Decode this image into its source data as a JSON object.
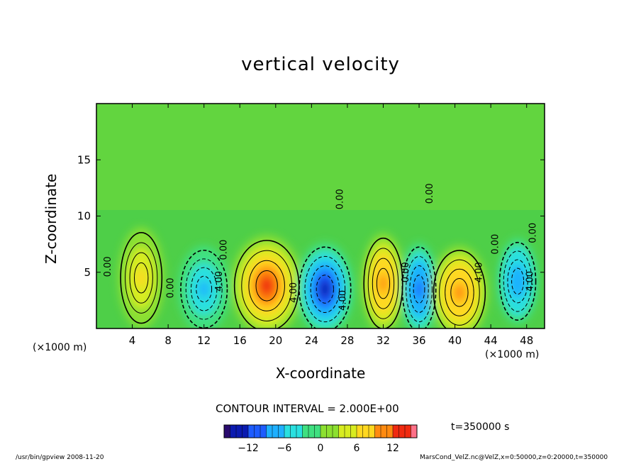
{
  "chart_data": {
    "type": "heatmap",
    "title": "vertical velocity",
    "xlabel": "X-coordinate",
    "ylabel": "Z-coordinate",
    "x_unit_label": "(×1000 m)",
    "x_ticks": [
      4,
      8,
      12,
      16,
      20,
      24,
      28,
      32,
      36,
      40,
      44,
      48
    ],
    "y_ticks": [
      5,
      10,
      15
    ],
    "xlim": [
      0,
      50
    ],
    "ylim": [
      0,
      20
    ],
    "contour_interval_text": "CONTOUR INTERVAL = 2.000E+00",
    "contour_labels": [
      {
        "text": "0.00",
        "x": 1.6,
        "y": 5.5
      },
      {
        "text": "0.00",
        "x": 8.6,
        "y": 3.6
      },
      {
        "text": "4.00",
        "x": 14.0,
        "y": 4.2
      },
      {
        "text": "0.00",
        "x": 14.5,
        "y": 7.0
      },
      {
        "text": "4.00",
        "x": 22.3,
        "y": 3.2
      },
      {
        "text": "0.00",
        "x": 27.5,
        "y": 11.5
      },
      {
        "text": "4.00",
        "x": 27.8,
        "y": 2.5
      },
      {
        "text": "0.00",
        "x": 34.8,
        "y": 5.0
      },
      {
        "text": "0.00",
        "x": 37.5,
        "y": 12.0
      },
      {
        "text": "4.00",
        "x": 43.0,
        "y": 5.0
      },
      {
        "text": "0.00",
        "x": 44.8,
        "y": 7.5
      },
      {
        "text": "4.00",
        "x": 48.7,
        "y": 4.2
      },
      {
        "text": "0.00",
        "x": 49.0,
        "y": 8.5
      }
    ],
    "cells": [
      {
        "x": 5,
        "z": 4.5,
        "value": 6,
        "sx": 1.6,
        "sz": 2.8
      },
      {
        "x": 12,
        "z": 3.5,
        "value": -6,
        "sx": 1.8,
        "sz": 2.4
      },
      {
        "x": 19,
        "z": 3.8,
        "value": 12,
        "sx": 2.5,
        "sz": 2.8
      },
      {
        "x": 25.5,
        "z": 3.5,
        "value": -12,
        "sx": 2.0,
        "sz": 2.6
      },
      {
        "x": 32,
        "z": 4.0,
        "value": 10,
        "sx": 1.5,
        "sz": 2.8
      },
      {
        "x": 36,
        "z": 3.5,
        "value": -10,
        "sx": 1.3,
        "sz": 2.6
      },
      {
        "x": 40.5,
        "z": 3.2,
        "value": 10,
        "sx": 2.0,
        "sz": 2.6
      },
      {
        "x": 47,
        "z": 4.2,
        "value": -8,
        "sx": 1.4,
        "sz": 2.4
      }
    ],
    "colorbar": {
      "ticks": [
        -12,
        -6,
        0,
        6,
        12
      ],
      "range": [
        -16,
        16
      ],
      "stops": [
        "#2a0a6e",
        "#0a1ab0",
        "#1e5cff",
        "#1fb0ff",
        "#2ae0e0",
        "#3fe080",
        "#8ce030",
        "#d8ec20",
        "#ffd820",
        "#ff8a10",
        "#f02a10",
        "#ff7088"
      ]
    },
    "time_label": "t=350000 s"
  },
  "footer": {
    "left": "/usr/bin/gpview   2008-11-20",
    "right": "MarsCond_VelZ.nc@VelZ,x=0:50000,z=0:20000,t=350000"
  }
}
